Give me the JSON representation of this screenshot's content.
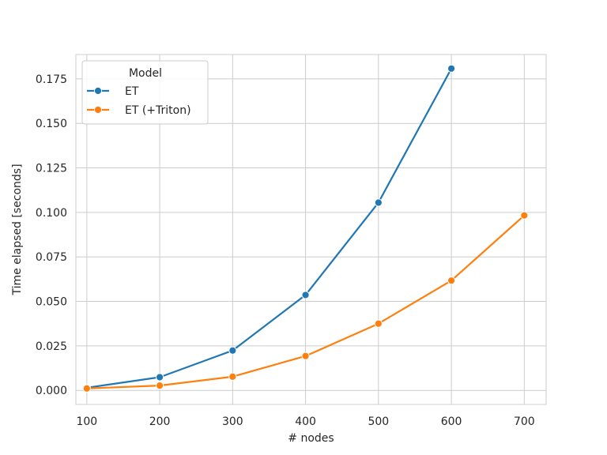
{
  "chart_data": {
    "type": "line",
    "xlabel": "# nodes",
    "ylabel": "Time elapsed [seconds]",
    "xlim": [
      85,
      730
    ],
    "ylim": [
      -0.0079,
      0.1887
    ],
    "x_ticks": [
      "100",
      "200",
      "300",
      "400",
      "500",
      "600",
      "700"
    ],
    "y_ticks": [
      "0.000",
      "0.025",
      "0.050",
      "0.075",
      "0.100",
      "0.125",
      "0.150",
      "0.175"
    ],
    "grid": true,
    "legend": {
      "title": "Model",
      "placement": "top-left"
    },
    "series": [
      {
        "name": "ET",
        "color": "#1f77b4",
        "x": [
          100,
          200,
          300,
          400,
          500,
          600
        ],
        "y": [
          0.0015,
          0.0074,
          0.0224,
          0.0536,
          0.1055,
          0.1808
        ]
      },
      {
        "name": "ET (+Triton)",
        "color": "#ff7f0e",
        "x": [
          100,
          200,
          300,
          400,
          500,
          600,
          700
        ],
        "y": [
          0.0011,
          0.0027,
          0.0077,
          0.0193,
          0.0375,
          0.0617,
          0.0983
        ]
      }
    ]
  }
}
